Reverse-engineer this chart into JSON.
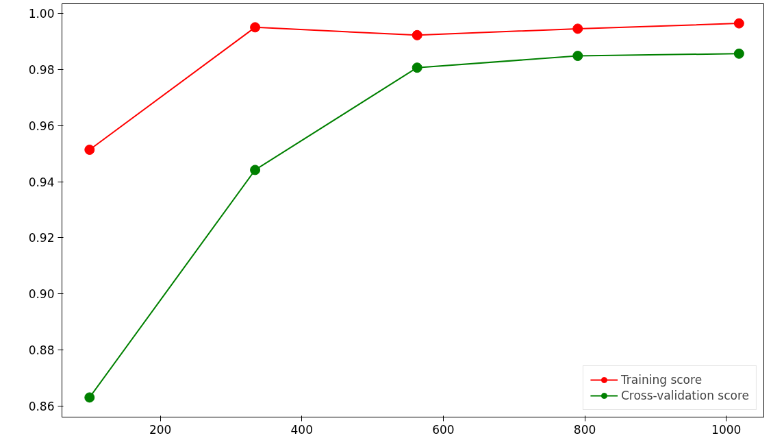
{
  "chart_data": {
    "type": "line",
    "x": [
      100,
      334,
      563,
      790,
      1018
    ],
    "series": [
      {
        "name": "Training score",
        "color": "#ff0000",
        "values": [
          0.9514,
          0.9951,
          0.9923,
          0.9946,
          0.9965
        ]
      },
      {
        "name": "Cross-validation score",
        "color": "#008000",
        "values": [
          0.863,
          0.9442,
          0.9807,
          0.9849,
          0.9857
        ]
      }
    ],
    "xlim": [
      61,
      1053
    ],
    "ylim": [
      0.856,
      1.0035
    ],
    "xticks": [
      200,
      400,
      600,
      800,
      1000
    ],
    "yticks": [
      {
        "value": 0.86,
        "label": "0.86"
      },
      {
        "value": 0.88,
        "label": "0.88"
      },
      {
        "value": 0.9,
        "label": "0.90"
      },
      {
        "value": 0.92,
        "label": "0.92"
      },
      {
        "value": 0.94,
        "label": "0.94"
      },
      {
        "value": 0.96,
        "label": "0.96"
      },
      {
        "value": 0.98,
        "label": "0.98"
      },
      {
        "value": 1.0,
        "label": "1.00"
      }
    ],
    "marker": "circle",
    "line_style": "solid",
    "grid": false,
    "legend": "bottom right"
  }
}
